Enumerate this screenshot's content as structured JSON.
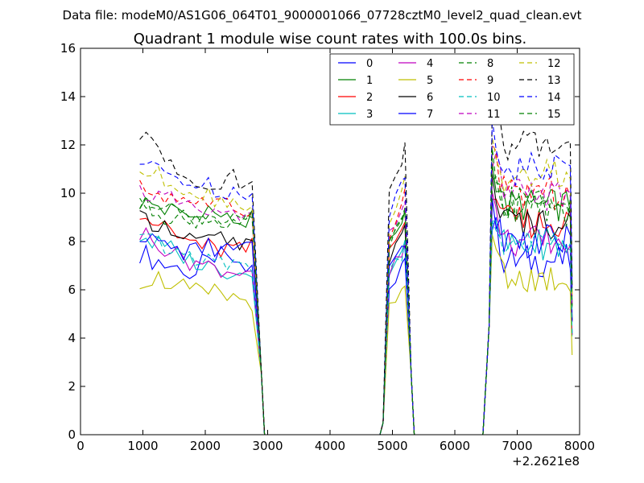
{
  "suptitle": "Data file: modeM0/AS1G06_064T01_9000001066_07728cztM0_level2_quad_clean.evt",
  "chart_data": {
    "type": "line",
    "title": "Quadrant 1 module wise count rates with 100.0s bins.",
    "xlabel": "",
    "ylabel": "",
    "x_offset_label": "+2.2621e8",
    "xlim": [
      0,
      8000
    ],
    "ylim": [
      0,
      16
    ],
    "xticks": [
      0,
      1000,
      2000,
      3000,
      4000,
      5000,
      6000,
      7000,
      8000
    ],
    "yticks": [
      0,
      2,
      4,
      6,
      8,
      10,
      12,
      14,
      16
    ],
    "grid": false,
    "legend_position": "top-right",
    "legend_columns": 4,
    "series": [
      {
        "name": "0",
        "color": "#0000ff",
        "dash": "solid",
        "base": [
          7.5,
          7.2,
          7.0,
          6.9,
          6.6,
          7.1,
          7.4,
          7.2,
          6.8,
          6.9
        ]
      },
      {
        "name": "1",
        "color": "#008000",
        "dash": "solid",
        "base": [
          9.6,
          9.5,
          9.3,
          9.2,
          9.0,
          9.4,
          9.1,
          8.9,
          8.8,
          8.9
        ]
      },
      {
        "name": "2",
        "color": "#ff0000",
        "dash": "solid",
        "base": [
          9.3,
          8.8,
          8.5,
          8.1,
          8.0,
          7.8,
          7.6,
          7.7,
          7.6,
          7.8
        ]
      },
      {
        "name": "3",
        "color": "#00bfbf",
        "dash": "solid",
        "base": [
          8.2,
          7.9,
          7.7,
          7.4,
          7.2,
          7.0,
          6.9,
          6.8,
          6.7,
          6.8
        ]
      },
      {
        "name": "4",
        "color": "#bf00bf",
        "dash": "solid",
        "base": [
          8.3,
          8.0,
          7.7,
          7.4,
          7.2,
          7.0,
          6.9,
          6.8,
          6.8,
          6.9
        ]
      },
      {
        "name": "5",
        "color": "#bfbf00",
        "dash": "solid",
        "base": [
          6.4,
          6.5,
          6.3,
          6.1,
          5.9,
          5.8,
          5.9,
          5.7,
          5.6,
          5.5
        ]
      },
      {
        "name": "6",
        "color": "#000000",
        "dash": "solid",
        "base": [
          8.9,
          8.8,
          8.6,
          8.4,
          8.2,
          8.0,
          8.1,
          7.9,
          7.8,
          7.9
        ]
      },
      {
        "name": "7",
        "color": "#0000ff",
        "dash": "solid",
        "base": [
          8.3,
          8.0,
          7.8,
          7.6,
          7.6,
          7.8,
          7.7,
          7.6,
          7.7,
          7.8
        ]
      },
      {
        "name": "8",
        "color": "#008000",
        "dash": "dashed",
        "base": [
          9.5,
          9.3,
          9.1,
          9.0,
          8.9,
          9.0,
          8.9,
          8.8,
          8.7,
          8.8
        ]
      },
      {
        "name": "9",
        "color": "#ff0000",
        "dash": "dashed",
        "base": [
          10.2,
          10.0,
          9.9,
          9.8,
          9.7,
          9.6,
          9.5,
          9.4,
          9.3,
          9.4
        ]
      },
      {
        "name": "10",
        "color": "#00bfbf",
        "dash": "dashed",
        "base": [
          8.1,
          7.9,
          7.7,
          7.5,
          7.4,
          7.2,
          7.1,
          7.0,
          6.9,
          7.0
        ]
      },
      {
        "name": "11",
        "color": "#bf00bf",
        "dash": "dashed",
        "base": [
          10.1,
          9.9,
          9.7,
          9.5,
          9.3,
          9.2,
          9.1,
          9.0,
          8.9,
          9.0
        ]
      },
      {
        "name": "12",
        "color": "#bfbf00",
        "dash": "dashed",
        "base": [
          10.9,
          10.7,
          10.5,
          10.3,
          10.1,
          10.0,
          9.8,
          9.7,
          9.6,
          9.7
        ]
      },
      {
        "name": "13",
        "color": "#000000",
        "dash": "dashed",
        "base": [
          12.4,
          11.9,
          11.4,
          11.0,
          10.6,
          10.5,
          10.4,
          10.6,
          10.4,
          10.3
        ]
      },
      {
        "name": "14",
        "color": "#0000ff",
        "dash": "dashed",
        "base": [
          11.2,
          11.0,
          10.8,
          10.6,
          10.4,
          10.3,
          10.2,
          10.1,
          10.0,
          10.1
        ]
      },
      {
        "name": "15",
        "color": "#008000",
        "dash": "dashed",
        "base": [
          9.7,
          9.6,
          9.4,
          9.3,
          9.1,
          9.0,
          8.9,
          8.8,
          8.8,
          8.9
        ]
      }
    ]
  }
}
